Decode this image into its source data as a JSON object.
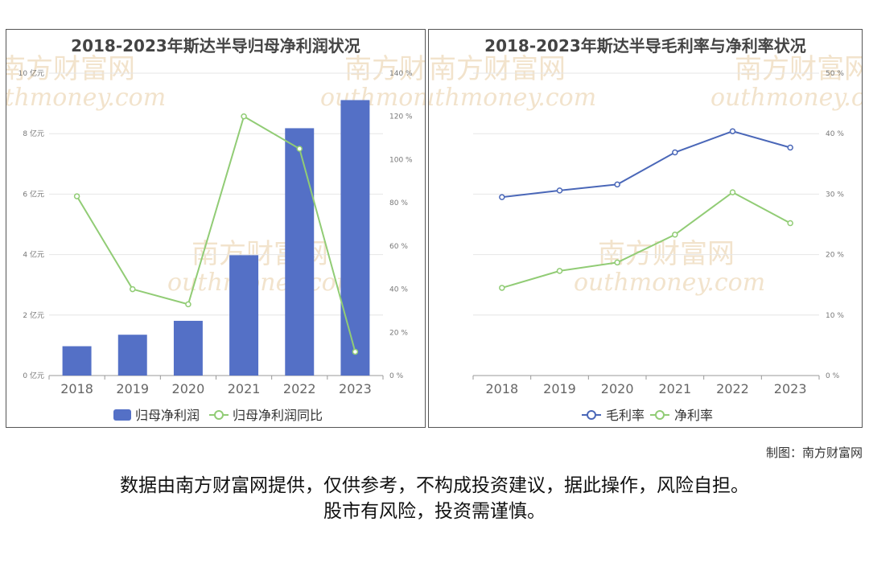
{
  "footer": {
    "credit": "制图：南方财富网",
    "disclaimer_line1": "数据由南方财富网提供，仅供参考，不构成投资建议，据此操作，风险自担。",
    "disclaimer_line2": "股市有风险，投资需谨慎。"
  },
  "watermark": {
    "cn": "南方财富网",
    "en": "outhmoney.com"
  },
  "chart_data": [
    {
      "type": "bar",
      "title": "2018-2023年斯达半导归母净利润状况",
      "categories": [
        "2018",
        "2019",
        "2020",
        "2021",
        "2022",
        "2023"
      ],
      "series": [
        {
          "name": "归母净利润",
          "kind": "bar",
          "axis": "left",
          "color": "#5470c6",
          "values": [
            0.97,
            1.35,
            1.81,
            3.98,
            8.18,
            9.11
          ]
        },
        {
          "name": "归母净利润同比",
          "kind": "line",
          "axis": "right",
          "color": "#91cc75",
          "values": [
            83.0,
            40.0,
            33.0,
            120.0,
            105.0,
            11.0
          ]
        }
      ],
      "y_left": {
        "ticks": [
          "0 亿元",
          "2 亿元",
          "4 亿元",
          "6 亿元",
          "8 亿元",
          "10 亿元"
        ],
        "ylim": [
          0,
          10
        ]
      },
      "y_right": {
        "ticks": [
          "0 %",
          "20 %",
          "40 %",
          "60 %",
          "80 %",
          "100 %",
          "120 %",
          "140 %"
        ],
        "ylim": [
          0,
          140
        ]
      },
      "grid": true,
      "legend": "bottom"
    },
    {
      "type": "line",
      "title": "2018-2023年斯达半导毛利率与净利率状况",
      "categories": [
        "2018",
        "2019",
        "2020",
        "2021",
        "2022",
        "2023"
      ],
      "series": [
        {
          "name": "毛利率",
          "color": "#4a67b8",
          "values": [
            29.5,
            30.6,
            31.6,
            36.9,
            40.4,
            37.7
          ]
        },
        {
          "name": "净利率",
          "color": "#91cc75",
          "values": [
            14.5,
            17.3,
            18.7,
            23.3,
            30.3,
            25.2
          ]
        }
      ],
      "y_right": {
        "ticks": [
          "0 %",
          "10 %",
          "20 %",
          "30 %",
          "40 %",
          "50 %"
        ],
        "ylim": [
          0,
          50
        ]
      },
      "grid": true,
      "legend": "bottom"
    }
  ]
}
